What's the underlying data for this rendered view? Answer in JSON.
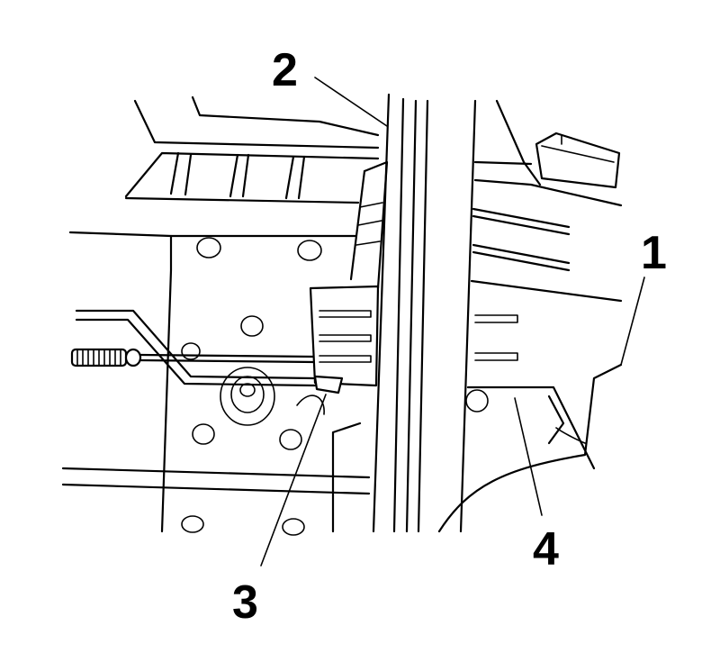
{
  "callouts": [
    {
      "id": "1",
      "label": "1"
    },
    {
      "id": "2",
      "label": "2"
    },
    {
      "id": "3",
      "label": "3"
    },
    {
      "id": "4",
      "label": "4"
    }
  ]
}
